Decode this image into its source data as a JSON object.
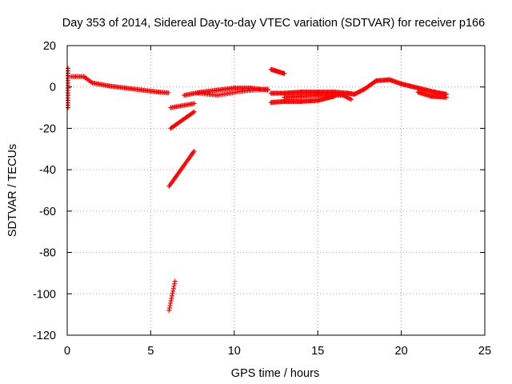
{
  "chart_data": {
    "type": "scatter",
    "title": "Day 353 of 2014, Sidereal Day-to-day VTEC variation (SDTVAR) for receiver p166",
    "xlabel": "GPS time / hours",
    "ylabel": "SDTVAR / TECUs",
    "xlim": [
      0,
      25
    ],
    "ylim": [
      -120,
      20
    ],
    "xticks": [
      "0",
      "5",
      "10",
      "15",
      "20",
      "25"
    ],
    "yticks": [
      "20",
      "0",
      "-20",
      "-40",
      "-60",
      "-80",
      "-100",
      "-120"
    ],
    "grid": true,
    "marker": "+",
    "series_color": "#ff0000",
    "series": [
      {
        "name": "SDTVAR",
        "segments": [
          {
            "x": [
              0.05,
              0.05
            ],
            "y": [
              9,
              -10
            ],
            "step": 1.2
          },
          {
            "x": [
              0.25,
              1.0,
              1.5,
              2.5,
              3.5,
              4.5,
              5.5,
              6.05
            ],
            "y": [
              5,
              5,
              2,
              0.5,
              -0.5,
              -1.5,
              -2.5,
              -2.8
            ],
            "step": 0.08
          },
          {
            "x": [
              6.2,
              7.6
            ],
            "y": [
              -10,
              -8
            ],
            "step": 0.08
          },
          {
            "x": [
              6.2,
              7.6
            ],
            "y": [
              -20,
              -12
            ],
            "step": 0.06
          },
          {
            "x": [
              6.1,
              7.6
            ],
            "y": [
              -48,
              -31
            ],
            "step": 0.06
          },
          {
            "x": [
              6.1,
              6.45
            ],
            "y": [
              -108,
              -94
            ],
            "step": 0.03
          },
          {
            "x": [
              7.0,
              8.0,
              9.0,
              10.0,
              11.0,
              12.0
            ],
            "y": [
              -4,
              -2.5,
              -1.5,
              -0.5,
              -0.5,
              -1.5
            ],
            "step": 0.08
          },
          {
            "x": [
              7.8,
              9.0,
              10.5,
              12.0
            ],
            "y": [
              -3,
              -4,
              -2,
              -1
            ],
            "step": 0.1
          },
          {
            "x": [
              12.2,
              13.0
            ],
            "y": [
              8.5,
              6.5
            ],
            "step": 0.05
          },
          {
            "x": [
              12.2,
              13.0,
              14.0,
              15.0,
              16.0,
              16.8,
              17.2,
              17.8,
              18.5,
              19.3,
              20.0,
              21.0,
              22.0,
              22.7
            ],
            "y": [
              -3,
              -3,
              -2.5,
              -2.5,
              -2.5,
              -3,
              -3.5,
              -1,
              3,
              3.5,
              1.5,
              -0.5,
              -2.5,
              -3.5
            ],
            "step": 0.06
          },
          {
            "x": [
              12.2,
              13.0,
              14.0,
              15.0,
              16.0
            ],
            "y": [
              -7.5,
              -7,
              -7,
              -6.5,
              -4.5
            ],
            "step": 0.06
          },
          {
            "x": [
              13.0,
              14.0,
              15.0,
              16.5,
              17.0
            ],
            "y": [
              -5,
              -4.5,
              -4,
              -4,
              -6
            ],
            "step": 0.07
          },
          {
            "x": [
              21.0,
              21.8,
              22.7
            ],
            "y": [
              -2.5,
              -4.5,
              -5
            ],
            "step": 0.06
          }
        ]
      }
    ]
  }
}
